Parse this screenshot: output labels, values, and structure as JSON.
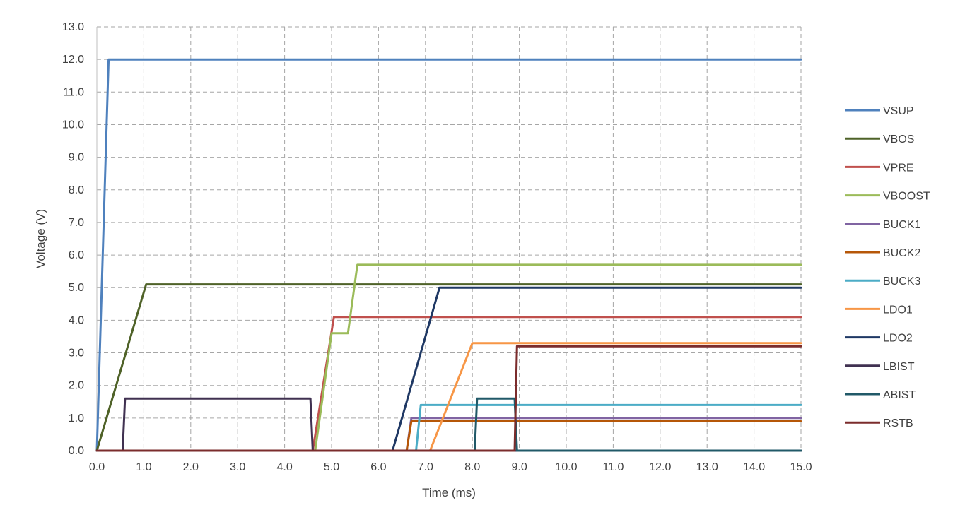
{
  "chart_data": {
    "type": "line",
    "xlabel": "Time (ms)",
    "ylabel": "Voltage (V)",
    "xlim": [
      0,
      15
    ],
    "ylim": [
      0,
      13
    ],
    "x_ticks": [
      "0.0",
      "1.0",
      "2.0",
      "3.0",
      "4.0",
      "5.0",
      "6.0",
      "7.0",
      "8.0",
      "9.0",
      "10.0",
      "11.0",
      "12.0",
      "13.0",
      "14.0",
      "15.0"
    ],
    "y_ticks": [
      "0.0",
      "1.0",
      "2.0",
      "3.0",
      "4.0",
      "5.0",
      "6.0",
      "7.0",
      "8.0",
      "9.0",
      "10.0",
      "11.0",
      "12.0",
      "13.0"
    ],
    "grid": "dashed",
    "legend_position": "right",
    "series": [
      {
        "name": "VSUP",
        "color": "#4f81bd",
        "points": [
          [
            0,
            0
          ],
          [
            0.25,
            12
          ],
          [
            15,
            12
          ]
        ]
      },
      {
        "name": "VBOS",
        "color": "#4f6228",
        "points": [
          [
            0,
            0
          ],
          [
            1.05,
            5.1
          ],
          [
            15,
            5.1
          ]
        ]
      },
      {
        "name": "VPRE",
        "color": "#c0504d",
        "points": [
          [
            0,
            0
          ],
          [
            4.6,
            0
          ],
          [
            5.05,
            4.1
          ],
          [
            15,
            4.1
          ]
        ]
      },
      {
        "name": "VBOOST",
        "color": "#9bbb59",
        "points": [
          [
            0,
            0
          ],
          [
            4.65,
            0
          ],
          [
            5.0,
            3.6
          ],
          [
            5.35,
            3.6
          ],
          [
            5.55,
            5.7
          ],
          [
            15,
            5.7
          ]
        ]
      },
      {
        "name": "BUCK1",
        "color": "#8064a2",
        "points": [
          [
            0,
            0
          ],
          [
            6.6,
            0
          ],
          [
            6.7,
            1.0
          ],
          [
            15,
            1.0
          ]
        ]
      },
      {
        "name": "BUCK2",
        "color": "#b65708",
        "points": [
          [
            0,
            0
          ],
          [
            6.6,
            0
          ],
          [
            6.7,
            0.9
          ],
          [
            15,
            0.9
          ]
        ]
      },
      {
        "name": "BUCK3",
        "color": "#4bacc6",
        "points": [
          [
            0,
            0
          ],
          [
            6.8,
            0
          ],
          [
            6.9,
            1.4
          ],
          [
            15,
            1.4
          ]
        ]
      },
      {
        "name": "LDO1",
        "color": "#f79646",
        "points": [
          [
            0,
            0
          ],
          [
            7.1,
            0
          ],
          [
            8.0,
            3.3
          ],
          [
            15,
            3.3
          ]
        ]
      },
      {
        "name": "LDO2",
        "color": "#1f3864",
        "points": [
          [
            0,
            0
          ],
          [
            6.3,
            0
          ],
          [
            7.3,
            5.0
          ],
          [
            15,
            5.0
          ]
        ]
      },
      {
        "name": "LBIST",
        "color": "#403151",
        "points": [
          [
            0,
            0
          ],
          [
            0.55,
            0
          ],
          [
            0.6,
            1.6
          ],
          [
            4.55,
            1.6
          ],
          [
            4.6,
            0
          ],
          [
            15,
            0
          ]
        ]
      },
      {
        "name": "ABIST",
        "color": "#215968",
        "points": [
          [
            0,
            0
          ],
          [
            8.05,
            0
          ],
          [
            8.1,
            1.6
          ],
          [
            8.9,
            1.6
          ],
          [
            8.95,
            0
          ],
          [
            15,
            0
          ]
        ]
      },
      {
        "name": "RSTB",
        "color": "#7b2c2c",
        "points": [
          [
            0,
            0
          ],
          [
            8.9,
            0
          ],
          [
            8.95,
            3.2
          ],
          [
            15,
            3.2
          ]
        ]
      }
    ]
  }
}
